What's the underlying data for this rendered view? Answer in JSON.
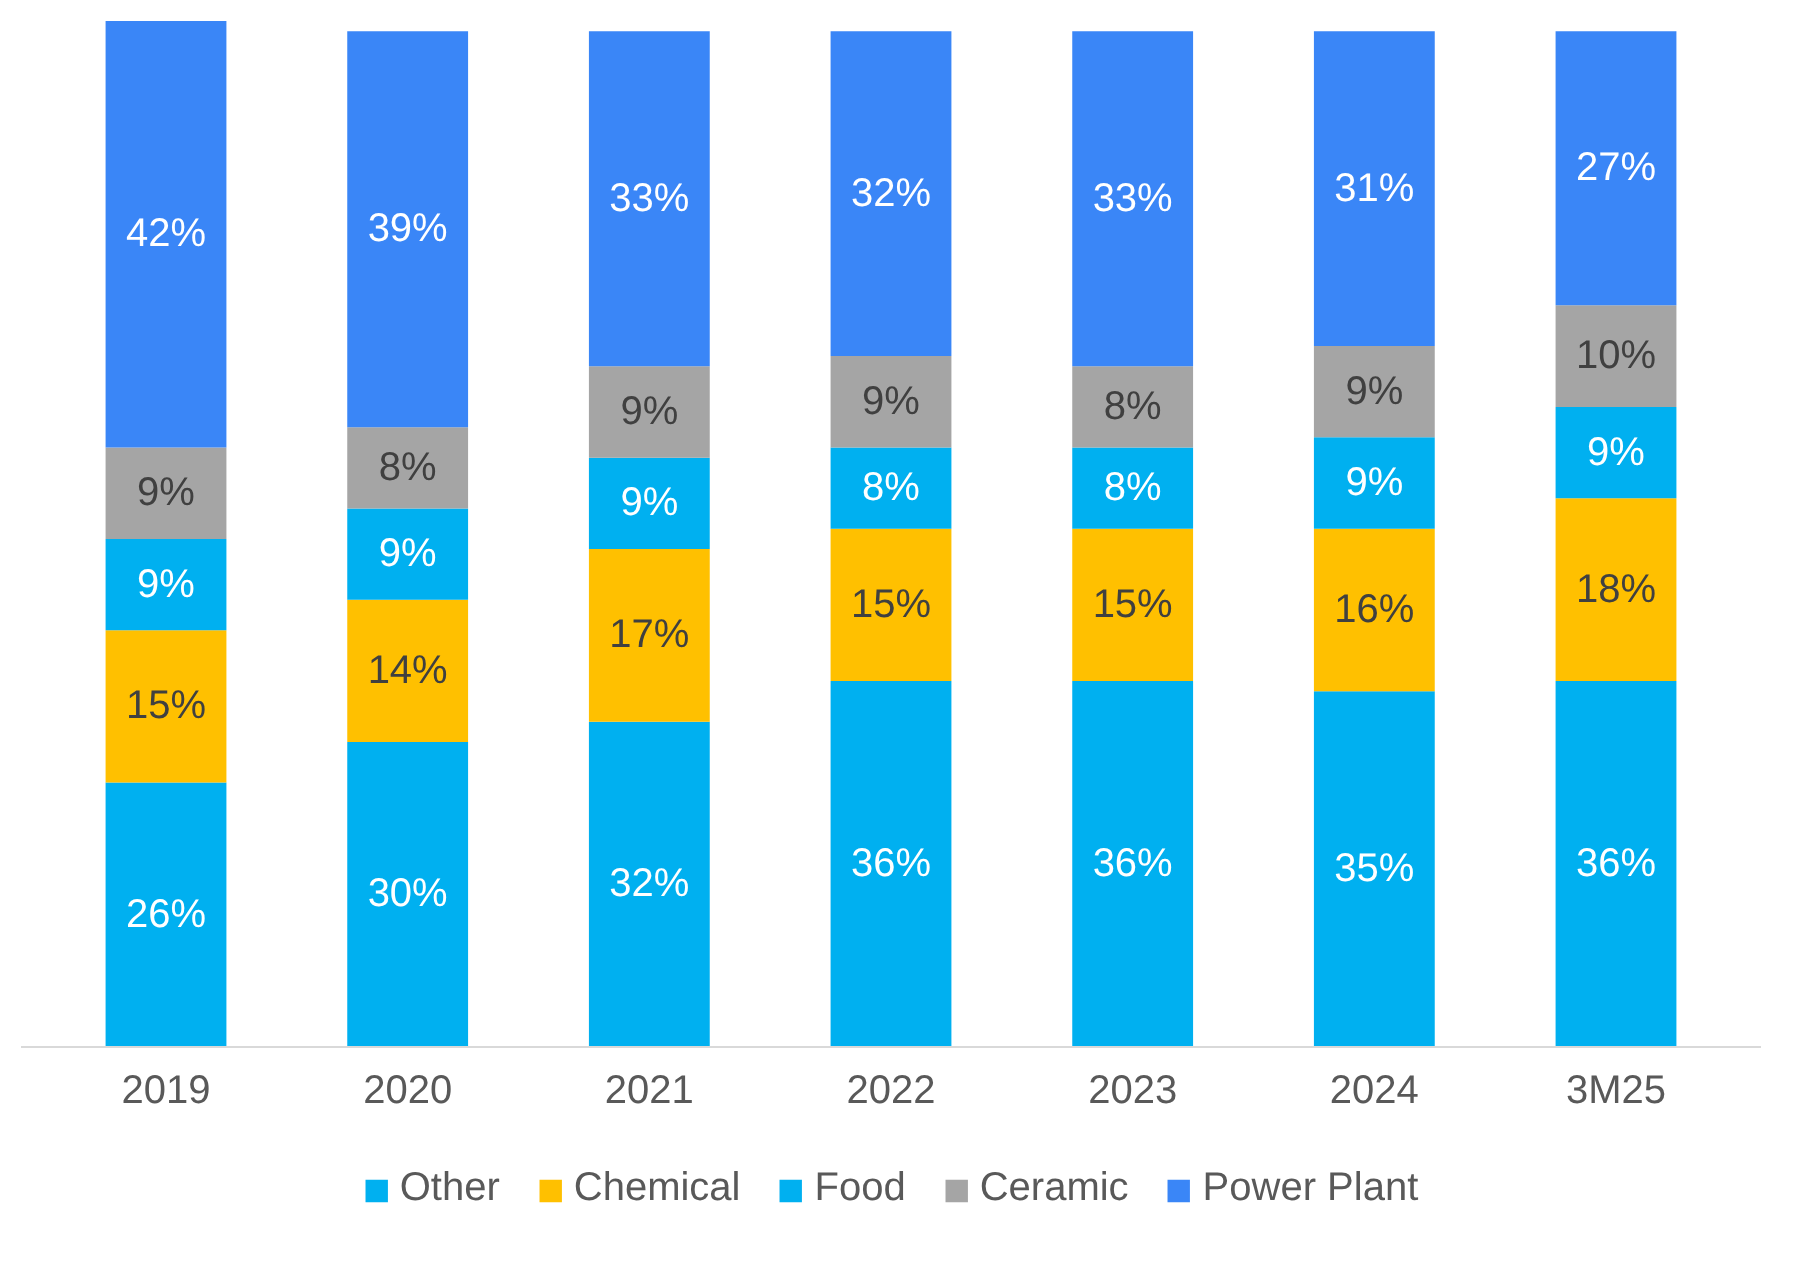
{
  "chart_data": {
    "type": "bar",
    "stacked": true,
    "legend": "bottom",
    "grid": false,
    "categories": [
      "2019",
      "2020",
      "2021",
      "2022",
      "2023",
      "2024",
      "3M25"
    ],
    "series": [
      {
        "name": "Other",
        "color": "#00b0f0",
        "values": [
          26,
          30,
          32,
          36,
          36,
          35,
          36
        ],
        "value_labels": [
          "26%",
          "30%",
          "32%",
          "36%",
          "36%",
          "35%",
          "36%"
        ]
      },
      {
        "name": "Chemical",
        "color": "#ffc000",
        "values": [
          15,
          14,
          17,
          15,
          15,
          16,
          18
        ],
        "value_labels": [
          "15%",
          "14%",
          "17%",
          "15%",
          "15%",
          "16%",
          "18%"
        ]
      },
      {
        "name": "Food",
        "color": "#00b0f0",
        "values": [
          9,
          9,
          9,
          8,
          8,
          9,
          9
        ],
        "value_labels": [
          "9%",
          "9%",
          "9%",
          "8%",
          "8%",
          "9%",
          "9%"
        ]
      },
      {
        "name": "Ceramic",
        "color": "#a5a5a5",
        "values": [
          9,
          8,
          9,
          9,
          8,
          9,
          10
        ],
        "value_labels": [
          "9%",
          "8%",
          "9%",
          "9%",
          "8%",
          "9%",
          "10%"
        ]
      },
      {
        "name": "Power Plant",
        "color": "#3a86f7",
        "values": [
          42,
          39,
          33,
          32,
          33,
          31,
          27
        ],
        "value_labels": [
          "42%",
          "39%",
          "33%",
          "32%",
          "33%",
          "31%",
          "27%"
        ]
      }
    ]
  }
}
